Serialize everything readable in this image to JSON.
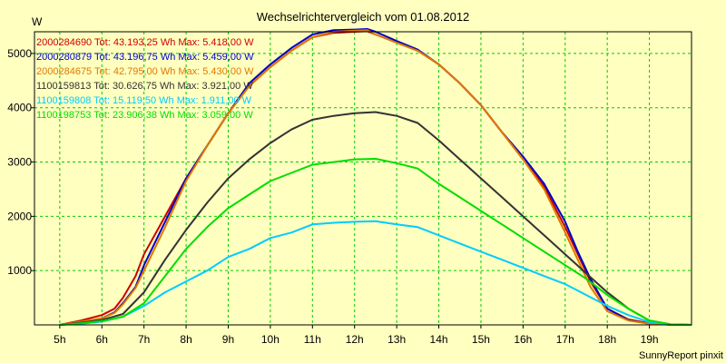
{
  "chart_data": {
    "type": "line",
    "title": "Wechselrichtervergleich vom 01.08.2012",
    "ylabel": "W",
    "footer": "SunnyReport pinxit",
    "xlim": [
      4.4,
      20.0
    ],
    "ylim": [
      0,
      5400
    ],
    "x_ticks": [
      {
        "value": 5,
        "label": "5h"
      },
      {
        "value": 6,
        "label": "6h"
      },
      {
        "value": 7,
        "label": "7h"
      },
      {
        "value": 8,
        "label": "8h"
      },
      {
        "value": 9,
        "label": "9h"
      },
      {
        "value": 10,
        "label": "10h"
      },
      {
        "value": 11,
        "label": "11h"
      },
      {
        "value": 12,
        "label": "12h"
      },
      {
        "value": 13,
        "label": "13h"
      },
      {
        "value": 14,
        "label": "14h"
      },
      {
        "value": 15,
        "label": "15h"
      },
      {
        "value": 16,
        "label": "16h"
      },
      {
        "value": 17,
        "label": "17h"
      },
      {
        "value": 18,
        "label": "18h"
      },
      {
        "value": 19,
        "label": "19h"
      }
    ],
    "y_ticks": [
      {
        "value": 1000,
        "label": "1000"
      },
      {
        "value": 2000,
        "label": "2000"
      },
      {
        "value": 3000,
        "label": "3000"
      },
      {
        "value": 4000,
        "label": "4000"
      },
      {
        "value": 5000,
        "label": "5000"
      }
    ],
    "grid": true,
    "legend_position": "top-left",
    "series": [
      {
        "name": "2000284690 Tot: 43.193,25 Wh Max: 5.418,00 W",
        "color": "#cc0000",
        "points": [
          [
            5.0,
            0
          ],
          [
            5.5,
            80
          ],
          [
            6.0,
            180
          ],
          [
            6.3,
            300
          ],
          [
            6.5,
            500
          ],
          [
            6.8,
            900
          ],
          [
            7.0,
            1300
          ],
          [
            7.5,
            2000
          ],
          [
            8.0,
            2700
          ],
          [
            8.5,
            3300
          ],
          [
            9.0,
            3900
          ],
          [
            9.5,
            4400
          ],
          [
            10.0,
            4750
          ],
          [
            10.5,
            5050
          ],
          [
            11.0,
            5300
          ],
          [
            11.5,
            5380
          ],
          [
            12.0,
            5400
          ],
          [
            12.3,
            5410
          ],
          [
            12.5,
            5350
          ],
          [
            13.0,
            5200
          ],
          [
            13.5,
            5050
          ],
          [
            14.0,
            4800
          ],
          [
            14.5,
            4450
          ],
          [
            15.0,
            4050
          ],
          [
            15.5,
            3550
          ],
          [
            16.0,
            3050
          ],
          [
            16.5,
            2550
          ],
          [
            17.0,
            1800
          ],
          [
            17.3,
            1300
          ],
          [
            17.6,
            800
          ],
          [
            18.0,
            300
          ],
          [
            18.5,
            100
          ],
          [
            19.0,
            30
          ],
          [
            19.5,
            5
          ],
          [
            20.0,
            0
          ]
        ]
      },
      {
        "name": "2000280879 Tot: 43.196,75 Wh Max: 5.459,00 W",
        "color": "#0000cc",
        "points": [
          [
            5.0,
            0
          ],
          [
            5.5,
            50
          ],
          [
            6.0,
            120
          ],
          [
            6.3,
            230
          ],
          [
            6.5,
            400
          ],
          [
            6.8,
            700
          ],
          [
            7.0,
            1100
          ],
          [
            7.5,
            1900
          ],
          [
            8.0,
            2700
          ],
          [
            8.5,
            3300
          ],
          [
            9.0,
            3900
          ],
          [
            9.5,
            4450
          ],
          [
            10.0,
            4800
          ],
          [
            10.5,
            5100
          ],
          [
            11.0,
            5350
          ],
          [
            11.5,
            5430
          ],
          [
            12.0,
            5440
          ],
          [
            12.3,
            5450
          ],
          [
            12.5,
            5400
          ],
          [
            13.0,
            5230
          ],
          [
            13.5,
            5070
          ],
          [
            14.0,
            4800
          ],
          [
            14.5,
            4450
          ],
          [
            15.0,
            4050
          ],
          [
            15.5,
            3550
          ],
          [
            16.0,
            3100
          ],
          [
            16.5,
            2600
          ],
          [
            17.0,
            1900
          ],
          [
            17.3,
            1350
          ],
          [
            17.6,
            850
          ],
          [
            18.0,
            300
          ],
          [
            18.5,
            90
          ],
          [
            19.0,
            20
          ],
          [
            19.5,
            5
          ],
          [
            20.0,
            0
          ]
        ]
      },
      {
        "name": "2000284675 Tot: 42.795,00 Wh Max: 5.430,00 W",
        "color": "#e07800",
        "points": [
          [
            5.0,
            0
          ],
          [
            5.5,
            60
          ],
          [
            6.0,
            120
          ],
          [
            6.3,
            220
          ],
          [
            6.5,
            380
          ],
          [
            6.8,
            680
          ],
          [
            7.0,
            1000
          ],
          [
            7.5,
            1800
          ],
          [
            8.0,
            2650
          ],
          [
            8.5,
            3300
          ],
          [
            9.0,
            3900
          ],
          [
            9.5,
            4400
          ],
          [
            10.0,
            4750
          ],
          [
            10.5,
            5050
          ],
          [
            11.0,
            5300
          ],
          [
            11.5,
            5400
          ],
          [
            12.0,
            5420
          ],
          [
            12.3,
            5430
          ],
          [
            12.5,
            5350
          ],
          [
            13.0,
            5200
          ],
          [
            13.5,
            5050
          ],
          [
            14.0,
            4800
          ],
          [
            14.5,
            4450
          ],
          [
            15.0,
            4050
          ],
          [
            15.5,
            3550
          ],
          [
            16.0,
            3050
          ],
          [
            16.5,
            2500
          ],
          [
            17.0,
            1700
          ],
          [
            17.3,
            1200
          ],
          [
            17.6,
            700
          ],
          [
            18.0,
            250
          ],
          [
            18.5,
            80
          ],
          [
            19.0,
            20
          ],
          [
            19.5,
            5
          ],
          [
            20.0,
            0
          ]
        ]
      },
      {
        "name": "1100159813 Tot: 30.626,75 Wh Max: 3.921,00 W",
        "color": "#333333",
        "points": [
          [
            5.0,
            0
          ],
          [
            5.5,
            40
          ],
          [
            6.0,
            90
          ],
          [
            6.5,
            200
          ],
          [
            7.0,
            600
          ],
          [
            7.5,
            1200
          ],
          [
            8.0,
            1750
          ],
          [
            8.5,
            2250
          ],
          [
            9.0,
            2700
          ],
          [
            9.5,
            3050
          ],
          [
            10.0,
            3350
          ],
          [
            10.5,
            3600
          ],
          [
            11.0,
            3780
          ],
          [
            11.5,
            3850
          ],
          [
            12.0,
            3900
          ],
          [
            12.5,
            3920
          ],
          [
            13.0,
            3850
          ],
          [
            13.5,
            3720
          ],
          [
            14.0,
            3400
          ],
          [
            14.5,
            3050
          ],
          [
            15.0,
            2700
          ],
          [
            15.5,
            2350
          ],
          [
            16.0,
            2000
          ],
          [
            16.5,
            1650
          ],
          [
            17.0,
            1300
          ],
          [
            17.5,
            950
          ],
          [
            18.0,
            600
          ],
          [
            18.5,
            300
          ],
          [
            19.0,
            80
          ],
          [
            19.5,
            10
          ],
          [
            20.0,
            0
          ]
        ]
      },
      {
        "name": "1100159808 Tot: 15.119,50 Wh Max: 1.911,00 W",
        "color": "#00ccff",
        "points": [
          [
            5.0,
            0
          ],
          [
            5.5,
            20
          ],
          [
            6.0,
            60
          ],
          [
            6.5,
            150
          ],
          [
            7.0,
            350
          ],
          [
            7.5,
            600
          ],
          [
            8.0,
            800
          ],
          [
            8.5,
            1000
          ],
          [
            9.0,
            1250
          ],
          [
            9.5,
            1400
          ],
          [
            10.0,
            1600
          ],
          [
            10.5,
            1700
          ],
          [
            11.0,
            1850
          ],
          [
            11.5,
            1880
          ],
          [
            12.0,
            1900
          ],
          [
            12.5,
            1910
          ],
          [
            13.0,
            1850
          ],
          [
            13.5,
            1800
          ],
          [
            14.0,
            1650
          ],
          [
            14.5,
            1500
          ],
          [
            15.0,
            1350
          ],
          [
            15.5,
            1200
          ],
          [
            16.0,
            1050
          ],
          [
            16.5,
            900
          ],
          [
            17.0,
            750
          ],
          [
            17.5,
            550
          ],
          [
            18.0,
            350
          ],
          [
            18.5,
            180
          ],
          [
            19.0,
            50
          ],
          [
            19.5,
            5
          ],
          [
            20.0,
            0
          ]
        ]
      },
      {
        "name": "1100198753 Tot: 23.906,38 Wh Max: 3.059,00 W",
        "color": "#00dd00",
        "points": [
          [
            5.0,
            0
          ],
          [
            5.5,
            30
          ],
          [
            6.0,
            70
          ],
          [
            6.5,
            150
          ],
          [
            7.0,
            400
          ],
          [
            7.5,
            900
          ],
          [
            8.0,
            1400
          ],
          [
            8.5,
            1800
          ],
          [
            9.0,
            2150
          ],
          [
            9.5,
            2400
          ],
          [
            10.0,
            2650
          ],
          [
            10.5,
            2800
          ],
          [
            11.0,
            2950
          ],
          [
            11.5,
            3000
          ],
          [
            12.0,
            3050
          ],
          [
            12.5,
            3060
          ],
          [
            13.0,
            2980
          ],
          [
            13.5,
            2880
          ],
          [
            14.0,
            2600
          ],
          [
            14.5,
            2350
          ],
          [
            15.0,
            2100
          ],
          [
            15.5,
            1850
          ],
          [
            16.0,
            1600
          ],
          [
            16.5,
            1350
          ],
          [
            17.0,
            1100
          ],
          [
            17.5,
            850
          ],
          [
            18.0,
            550
          ],
          [
            18.5,
            300
          ],
          [
            19.0,
            80
          ],
          [
            19.5,
            10
          ],
          [
            20.0,
            0
          ]
        ]
      }
    ]
  }
}
